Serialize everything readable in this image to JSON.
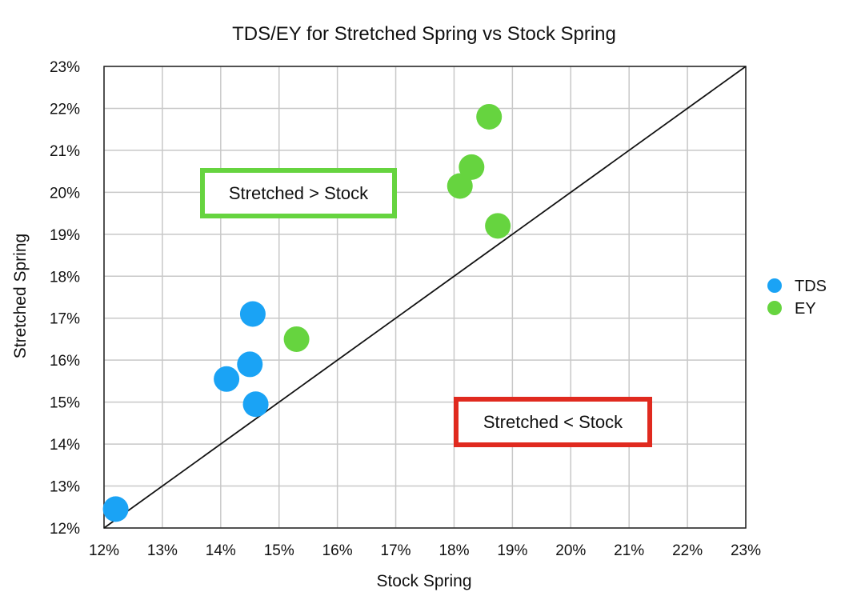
{
  "chart_data": {
    "type": "scatter",
    "title": "TDS/EY for Stretched Spring vs Stock Spring",
    "xlabel": "Stock Spring",
    "ylabel": "Stretched Spring",
    "xlim": [
      12,
      23
    ],
    "ylim": [
      12,
      23
    ],
    "x_ticks": [
      12,
      13,
      14,
      15,
      16,
      17,
      18,
      19,
      20,
      21,
      22,
      23
    ],
    "y_ticks": [
      12,
      13,
      14,
      15,
      16,
      17,
      18,
      19,
      20,
      21,
      22,
      23
    ],
    "x_tick_labels": [
      "12%",
      "13%",
      "14%",
      "15%",
      "16%",
      "17%",
      "18%",
      "19%",
      "20%",
      "21%",
      "22%",
      "23%"
    ],
    "y_tick_labels": [
      "12%",
      "13%",
      "14%",
      "15%",
      "16%",
      "17%",
      "18%",
      "19%",
      "20%",
      "21%",
      "22%",
      "23%"
    ],
    "grid": true,
    "legend_position": "right",
    "reference_line": {
      "from": [
        12,
        12
      ],
      "to": [
        23,
        23
      ]
    },
    "series": [
      {
        "name": "TDS",
        "color": "#1aa3f5",
        "points": [
          {
            "x": 12.2,
            "y": 12.45
          },
          {
            "x": 14.1,
            "y": 15.55
          },
          {
            "x": 14.5,
            "y": 15.9
          },
          {
            "x": 14.55,
            "y": 17.1
          },
          {
            "x": 14.6,
            "y": 14.95
          }
        ]
      },
      {
        "name": "EY",
        "color": "#66d43f",
        "points": [
          {
            "x": 15.3,
            "y": 16.5
          },
          {
            "x": 18.1,
            "y": 20.15
          },
          {
            "x": 18.3,
            "y": 20.6
          },
          {
            "x": 18.6,
            "y": 21.8
          },
          {
            "x": 18.75,
            "y": 19.2
          }
        ]
      }
    ],
    "annotations": [
      {
        "text": "Stretched > Stock",
        "border_color": "#66d43f"
      },
      {
        "text": "Stretched < Stock",
        "border_color": "#e02a1f"
      }
    ]
  }
}
